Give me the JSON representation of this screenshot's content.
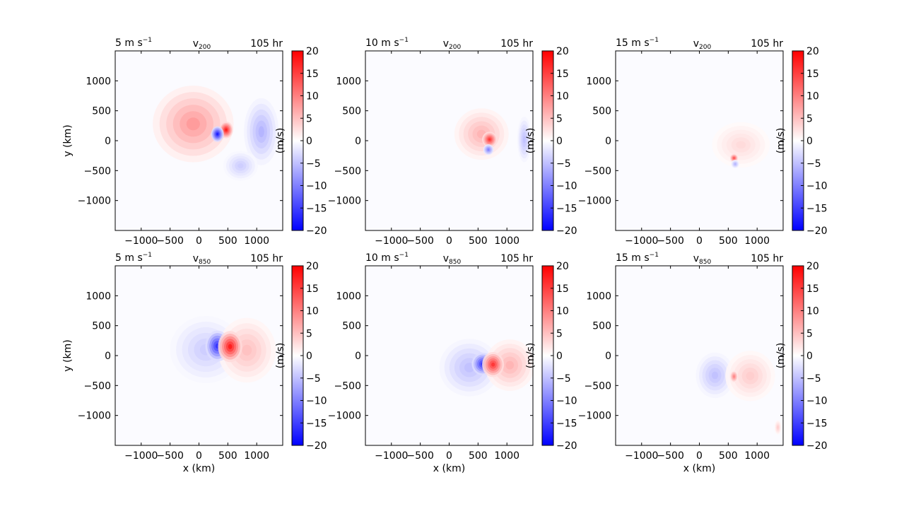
{
  "chart_data": {
    "type": "heatmap",
    "layout": "2 rows x 3 columns",
    "colormap": "bwr",
    "common": {
      "xlabel": "x (km)",
      "ylabel": "y (km)",
      "colorbar_label": "(m/s)",
      "time_label": "105 hr",
      "xlim": [
        -1450,
        1450
      ],
      "ylim": [
        -1500,
        1500
      ],
      "xticks": [
        -1000,
        -500,
        0,
        500,
        1000
      ],
      "xtick_labels": [
        "−1000",
        "−500",
        "0",
        "500",
        "1000"
      ],
      "yticks": [
        -1000,
        -500,
        0,
        500,
        1000
      ],
      "ytick_labels": [
        "−1000",
        "−500",
        "0",
        "500",
        "1000"
      ],
      "clim": [
        -20,
        20
      ],
      "colorbar_ticks": [
        -20,
        -15,
        -10,
        -5,
        0,
        5,
        10,
        15,
        20
      ],
      "colorbar_tick_labels": [
        "−20",
        "−15",
        "−10",
        "−5",
        "0",
        "5",
        "10",
        "15",
        "20"
      ]
    },
    "panels": [
      {
        "shear": "5 m s",
        "shear_exp": "−1",
        "var": "v",
        "level": "200",
        "blobs": [
          {
            "x": -100,
            "y": 280,
            "rx": 700,
            "ry": 640,
            "v": 8
          },
          {
            "x": 1080,
            "y": 150,
            "rx": 300,
            "ry": 560,
            "v": -6
          },
          {
            "x": 720,
            "y": -420,
            "rx": 300,
            "ry": 250,
            "v": -4
          },
          {
            "x": 470,
            "y": 180,
            "rx": 120,
            "ry": 140,
            "v": 18
          },
          {
            "x": 320,
            "y": 110,
            "rx": 110,
            "ry": 130,
            "v": -18
          }
        ]
      },
      {
        "shear": "10 m s",
        "shear_exp": "−1",
        "var": "v",
        "level": "200",
        "blobs": [
          {
            "x": 560,
            "y": 110,
            "rx": 470,
            "ry": 430,
            "v": 6
          },
          {
            "x": 1300,
            "y": 20,
            "rx": 120,
            "ry": 380,
            "v": -5
          },
          {
            "x": 700,
            "y": 20,
            "rx": 130,
            "ry": 130,
            "v": 16
          },
          {
            "x": 680,
            "y": -150,
            "rx": 90,
            "ry": 90,
            "v": -10
          }
        ]
      },
      {
        "shear": "15 m s",
        "shear_exp": "−1",
        "var": "v",
        "level": "200",
        "blobs": [
          {
            "x": 720,
            "y": -70,
            "rx": 500,
            "ry": 380,
            "v": 3
          },
          {
            "x": 600,
            "y": -290,
            "rx": 70,
            "ry": 70,
            "v": 14
          },
          {
            "x": 620,
            "y": -390,
            "rx": 70,
            "ry": 70,
            "v": -6
          }
        ]
      },
      {
        "shear": "5 m s",
        "shear_exp": "−1",
        "var": "v",
        "level": "850",
        "blobs": [
          {
            "x": 120,
            "y": 100,
            "rx": 620,
            "ry": 560,
            "v": -4
          },
          {
            "x": 830,
            "y": 90,
            "rx": 500,
            "ry": 540,
            "v": 5
          },
          {
            "x": 320,
            "y": 160,
            "rx": 210,
            "ry": 260,
            "v": -16
          },
          {
            "x": 540,
            "y": 150,
            "rx": 210,
            "ry": 260,
            "v": 18
          }
        ]
      },
      {
        "shear": "10 m s",
        "shear_exp": "−1",
        "var": "v",
        "level": "850",
        "blobs": [
          {
            "x": 350,
            "y": -200,
            "rx": 520,
            "ry": 480,
            "v": -5
          },
          {
            "x": 1050,
            "y": -160,
            "rx": 430,
            "ry": 430,
            "v": 6
          },
          {
            "x": 580,
            "y": -140,
            "rx": 190,
            "ry": 190,
            "v": -16
          },
          {
            "x": 760,
            "y": -150,
            "rx": 190,
            "ry": 210,
            "v": 16
          }
        ]
      },
      {
        "shear": "15 m s",
        "shear_exp": "−1",
        "var": "v",
        "level": "850",
        "blobs": [
          {
            "x": 270,
            "y": -330,
            "rx": 330,
            "ry": 380,
            "v": -5
          },
          {
            "x": 880,
            "y": -340,
            "rx": 430,
            "ry": 420,
            "v": 4
          },
          {
            "x": 600,
            "y": -350,
            "rx": 70,
            "ry": 100,
            "v": 10
          },
          {
            "x": 1360,
            "y": -1200,
            "rx": 60,
            "ry": 120,
            "v": 4
          }
        ]
      }
    ]
  }
}
